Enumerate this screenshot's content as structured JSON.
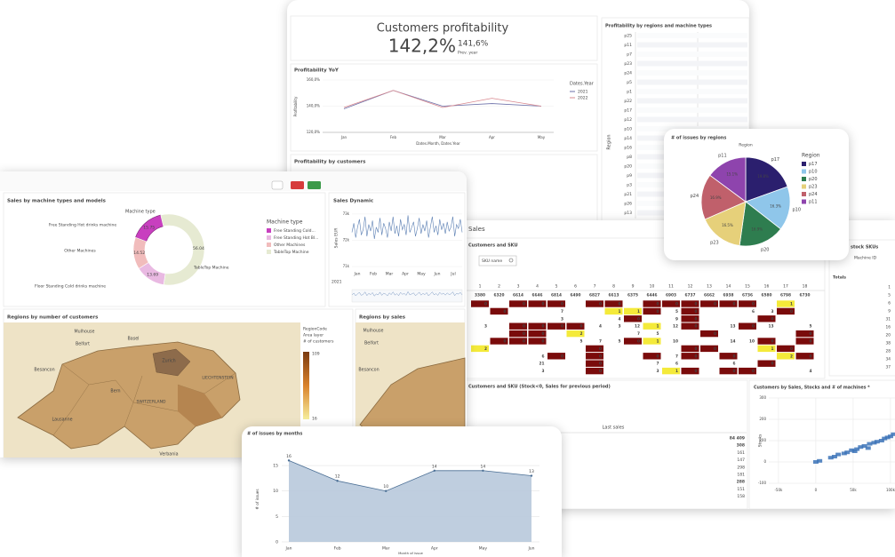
{
  "top_card": {
    "kpi_title": "Customers profitability",
    "kpi_value": "142,2%",
    "kpi_prev": "141,6%",
    "kpi_prev_label": "Prev. year",
    "yoy_chart": {
      "type": "line",
      "title": "Profitability YoY",
      "x_label": "Dates.Month, Dates.Year",
      "y_label": "Profitability",
      "legend_title": "Dates.Year",
      "categories": [
        "Jan",
        "Feb",
        "Mar",
        "Apr",
        "May"
      ],
      "series": [
        {
          "name": "2021",
          "color": "#6b6fa8",
          "values": [
            138,
            152,
            140,
            142,
            140
          ]
        },
        {
          "name": "2022",
          "color": "#d9888f",
          "values": [
            139,
            152,
            139,
            146,
            140
          ]
        }
      ],
      "ylim": [
        120,
        160
      ],
      "yticks": [
        {
          "value": 120,
          "label": "120,0%"
        },
        {
          "value": 140,
          "label": "140,0%"
        },
        {
          "value": 160,
          "label": "160,0%"
        }
      ]
    },
    "customers_section_title": "Profitability by customers",
    "regions_panel": {
      "title": "Profitability by regions and machine types",
      "axis_label": "Region",
      "rows": [
        "p25",
        "p11",
        "p7",
        "p23",
        "p24",
        "p5",
        "p1",
        "p22",
        "p17",
        "p12",
        "p10",
        "p14",
        "p16",
        "p8",
        "p20",
        "p9",
        "p3",
        "p21",
        "p26",
        "p13"
      ]
    }
  },
  "left_card": {
    "donut": {
      "type": "donut",
      "title": "Sales by machine types and models",
      "dimension_label": "Machine type",
      "legend_title": "Machine type",
      "categories": [
        "Floor Standing Cold drinks machine",
        "Free Standing Hot drinks machine",
        "Other Machines",
        "TableTop Machine"
      ],
      "legend_labels": [
        "Free Standing Cold...",
        "Free Standing Hot Bl...",
        "Other Machines",
        "TableTop Machine"
      ],
      "colors": [
        "#c83fbf",
        "#e9b9e2",
        "#f1bcbc",
        "#e6ead2"
      ],
      "values": [
        15.75,
        13.69,
        14.52,
        56.04
      ]
    },
    "sales_dynamic": {
      "type": "line",
      "title": "Sales Dynamic",
      "y_label": "Sales EUR",
      "year_label": "2021",
      "color": "#5b7fb3",
      "month_labels": [
        "Jan",
        "Feb",
        "Mar",
        "Apr",
        "May",
        "Jun",
        "Jul"
      ],
      "values": [
        72300,
        72650,
        72100,
        72500,
        72800,
        72200,
        72400,
        72900,
        72150,
        72600,
        72350,
        72750,
        72050,
        72500,
        72300,
        72850,
        72200,
        72650,
        72450,
        72100,
        72700,
        72350,
        72900,
        72250,
        72550,
        72150,
        72800,
        72400,
        72600,
        72200,
        72950,
        72300,
        72500,
        72700,
        72150,
        72450,
        72850,
        72250,
        72600,
        72350,
        72750,
        72100,
        72500,
        72900,
        72300,
        72550,
        72200,
        72800,
        72400,
        72650,
        72250,
        72700,
        72350,
        72500,
        72900,
        72150,
        72600,
        72450,
        72800,
        72300
      ],
      "ylim": [
        71000,
        73200
      ],
      "yticks": [
        {
          "value": 71000,
          "label": "71k"
        },
        {
          "value": 72000,
          "label": "72k"
        },
        {
          "value": 73000,
          "label": "73k"
        }
      ]
    },
    "map_customers": {
      "title": "Regions by number of customers",
      "legend_lines": [
        "RegionCode",
        "Area layer",
        "# of customers"
      ],
      "legend_max": 109,
      "legend_min": 16,
      "places": [
        "Mulhouse",
        "Belfort",
        "Besancon",
        "Basel",
        "Zurich",
        "Bern",
        "SWITZERLAND",
        "LIECHTENSTEIN",
        "Lausanne",
        "Verbania"
      ]
    },
    "map_sales": {
      "title": "Regions by sales",
      "places": [
        "Mulhouse",
        "Belfort",
        "Besancon"
      ]
    }
  },
  "table_card": {
    "title": "Sales",
    "pivot_title": "Customers and SKU",
    "search_label": "SKU name",
    "columns": [
      1,
      2,
      3,
      4,
      5,
      6,
      7,
      8,
      9,
      10,
      11,
      12,
      13,
      14,
      15,
      16,
      17,
      18
    ],
    "totals": [
      3380,
      6320,
      6614,
      6646,
      6814,
      6490,
      6827,
      6613,
      6375,
      6446,
      6903,
      6737,
      6662,
      6938,
      6736,
      6580,
      6798,
      6730
    ],
    "rows": [
      [
        0,
        null,
        0,
        0,
        0,
        null,
        0,
        0,
        null,
        0,
        0,
        0,
        0,
        0,
        0,
        null,
        1,
        null
      ],
      [
        null,
        0,
        null,
        null,
        7,
        null,
        null,
        1,
        1,
        0,
        5,
        0,
        null,
        null,
        6,
        3,
        0,
        null
      ],
      [
        null,
        null,
        null,
        null,
        3,
        null,
        null,
        4,
        0,
        null,
        9,
        0,
        null,
        null,
        null,
        0,
        null,
        null
      ],
      [
        3,
        null,
        0,
        0,
        0,
        0,
        4,
        3,
        12,
        1,
        12,
        0,
        null,
        13,
        0,
        13,
        null,
        5
      ],
      [
        null,
        null,
        0,
        0,
        null,
        2,
        null,
        null,
        7,
        5,
        null,
        null,
        0,
        null,
        null,
        null,
        null,
        0
      ],
      [
        null,
        0,
        0,
        0,
        null,
        5,
        7,
        5,
        0,
        1,
        10,
        null,
        null,
        14,
        10,
        0,
        null,
        0
      ],
      [
        2,
        null,
        null,
        null,
        null,
        null,
        0,
        null,
        null,
        null,
        null,
        0,
        0,
        null,
        null,
        1,
        0,
        null
      ],
      [
        null,
        null,
        null,
        6,
        0,
        null,
        0,
        null,
        null,
        0,
        7,
        0,
        null,
        0,
        null,
        null,
        2,
        0
      ],
      [
        null,
        null,
        null,
        21,
        null,
        null,
        0,
        null,
        null,
        7,
        6,
        null,
        null,
        6,
        null,
        0,
        null,
        null
      ],
      [
        null,
        null,
        null,
        3,
        null,
        null,
        0,
        null,
        null,
        3,
        1,
        0,
        null,
        0,
        0,
        null,
        null,
        4
      ]
    ],
    "lower_title": "Customers and SKU (Stock<0, Sales for previous period)",
    "last_sales_header": "Last sales",
    "last_sales": [
      "84 409",
      "308",
      "161",
      "147",
      "298",
      "181",
      "288",
      "151",
      "158"
    ],
    "stock_panel": {
      "title": "stock SKUs",
      "column_label": "Machine ID",
      "totals_label": "Totals",
      "values": [
        1,
        5,
        6,
        9,
        31,
        16,
        20,
        38,
        28,
        34,
        37
      ]
    },
    "scatter": {
      "type": "scatter",
      "title": "Customers by Sales, Stocks and # of machines *",
      "y_label": "Stocks",
      "color": "#3d74b8",
      "x": [
        0,
        5000,
        20000,
        25000,
        30000,
        38000,
        42000,
        48000,
        52000,
        55000,
        60000,
        65000,
        70000,
        72000,
        78000,
        82000,
        88000,
        92000,
        96000,
        100000,
        104000
      ],
      "y": [
        0,
        5,
        20,
        25,
        35,
        40,
        45,
        55,
        50,
        60,
        70,
        75,
        65,
        85,
        90,
        95,
        100,
        110,
        115,
        120,
        130
      ],
      "xlim": [
        -63000,
        106000
      ],
      "ylim": [
        -100,
        300
      ],
      "xticks": [
        {
          "value": -50000,
          "label": "-50k"
        },
        0,
        {
          "value": 50000,
          "label": "50k"
        },
        {
          "value": 100000,
          "label": "100k"
        }
      ],
      "yticks": [
        -100,
        0,
        100,
        200,
        300
      ]
    }
  },
  "pie_card": {
    "type": "pie",
    "title": "# of issues by regions",
    "dimension_label": "Region",
    "legend_title": "Region",
    "categories": [
      "p17",
      "p10",
      "p20",
      "p23",
      "p24",
      "p11"
    ],
    "colors": [
      "#2b1f6e",
      "#8fc6ea",
      "#2e7d4f",
      "#e6d07a",
      "#c0606b",
      "#8e44ad"
    ],
    "values": [
      19.8,
      16.3,
      16.9,
      16.5,
      16.9,
      15.1
    ],
    "value_labels": [
      "19.8%",
      "16.3%",
      "16.9%",
      "16.5%",
      "16.9%",
      "15.1%"
    ]
  },
  "issues_card": {
    "type": "area",
    "title": "# of issues by months",
    "x_label": "Month of issue",
    "y_label": "# of issues",
    "categories": [
      "Jan",
      "Feb",
      "Mar",
      "Apr",
      "May",
      "Jun"
    ],
    "values": [
      16,
      12,
      10,
      14,
      14,
      13
    ],
    "color": "#b8c9dc",
    "line_color": "#4a6e94",
    "ylim": [
      0,
      17
    ],
    "yticks": [
      0,
      5,
      10,
      15
    ]
  }
}
